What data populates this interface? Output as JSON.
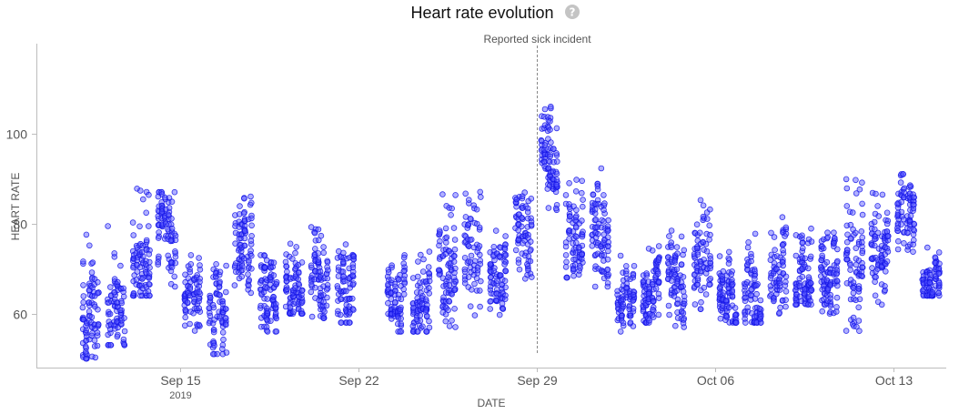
{
  "chart_data": {
    "type": "scatter",
    "title": "Heart rate evolution",
    "title_help_icon": "question-circle-icon",
    "xlabel": "DATE",
    "ylabel": "HEART RATE",
    "x_axis_type": "date",
    "xlim": [
      "2019-09-10T00:00",
      "2019-10-14T12:00"
    ],
    "ylim": [
      48,
      120
    ],
    "y_ticks": [
      60,
      80,
      100
    ],
    "x_ticks": [
      {
        "date": "2019-09-15",
        "label": "Sep 15",
        "sublabel": "2019"
      },
      {
        "date": "2019-09-22",
        "label": "Sep 22",
        "sublabel": ""
      },
      {
        "date": "2019-09-29",
        "label": "Sep 29",
        "sublabel": ""
      },
      {
        "date": "2019-10-06",
        "label": "Oct 06",
        "sublabel": ""
      },
      {
        "date": "2019-10-13",
        "label": "Oct 13",
        "sublabel": ""
      }
    ],
    "grid": false,
    "point_color": "#5050ff",
    "point_edge_color": "#1414e6",
    "annotation": {
      "date": "2019-09-29",
      "label": "Reported sick incident"
    },
    "daily_bands": [
      {
        "date": "2019-09-11",
        "min": 50,
        "max": 78,
        "center": 57
      },
      {
        "date": "2019-09-12",
        "min": 53,
        "max": 80,
        "center": 63
      },
      {
        "date": "2019-09-13",
        "min": 64,
        "max": 88,
        "center": 72
      },
      {
        "date": "2019-09-14",
        "min": 66,
        "max": 87,
        "center": 79
      },
      {
        "date": "2019-09-15",
        "min": 55,
        "max": 73,
        "center": 61
      },
      {
        "date": "2019-09-16",
        "min": 51,
        "max": 71,
        "center": 60
      },
      {
        "date": "2019-09-17",
        "min": 63,
        "max": 87,
        "center": 74
      },
      {
        "date": "2019-09-18",
        "min": 56,
        "max": 73,
        "center": 62
      },
      {
        "date": "2019-09-19",
        "min": 60,
        "max": 78,
        "center": 66
      },
      {
        "date": "2019-09-20",
        "min": 59,
        "max": 82,
        "center": 67
      },
      {
        "date": "2019-09-21",
        "min": 58,
        "max": 84,
        "center": 65
      },
      {
        "date": "2019-09-23",
        "min": 56,
        "max": 73,
        "center": 64
      },
      {
        "date": "2019-09-24",
        "min": 56,
        "max": 74,
        "center": 64
      },
      {
        "date": "2019-09-25",
        "min": 57,
        "max": 87,
        "center": 69
      },
      {
        "date": "2019-09-26",
        "min": 58,
        "max": 89,
        "center": 74
      },
      {
        "date": "2019-09-27",
        "min": 58,
        "max": 80,
        "center": 67
      },
      {
        "date": "2019-09-28",
        "min": 67,
        "max": 90,
        "center": 79
      },
      {
        "date": "2019-09-29",
        "min": 83,
        "max": 106,
        "center": 94
      },
      {
        "date": "2019-09-30",
        "min": 68,
        "max": 90,
        "center": 76
      },
      {
        "date": "2019-10-01",
        "min": 66,
        "max": 93,
        "center": 78
      },
      {
        "date": "2019-10-02",
        "min": 56,
        "max": 73,
        "center": 63
      },
      {
        "date": "2019-10-03",
        "min": 58,
        "max": 75,
        "center": 65
      },
      {
        "date": "2019-10-04",
        "min": 57,
        "max": 79,
        "center": 66
      },
      {
        "date": "2019-10-05",
        "min": 61,
        "max": 90,
        "center": 71
      },
      {
        "date": "2019-10-06",
        "min": 58,
        "max": 74,
        "center": 64
      },
      {
        "date": "2019-10-07",
        "min": 58,
        "max": 78,
        "center": 65
      },
      {
        "date": "2019-10-08",
        "min": 60,
        "max": 82,
        "center": 68
      },
      {
        "date": "2019-10-09",
        "min": 62,
        "max": 80,
        "center": 69
      },
      {
        "date": "2019-10-10",
        "min": 60,
        "max": 78,
        "center": 69
      },
      {
        "date": "2019-10-11",
        "min": 56,
        "max": 90,
        "center": 68
      },
      {
        "date": "2019-10-12",
        "min": 62,
        "max": 89,
        "center": 73
      },
      {
        "date": "2019-10-13",
        "min": 72,
        "max": 91,
        "center": 83
      },
      {
        "date": "2019-10-14",
        "min": 64,
        "max": 75,
        "center": 68
      }
    ]
  }
}
